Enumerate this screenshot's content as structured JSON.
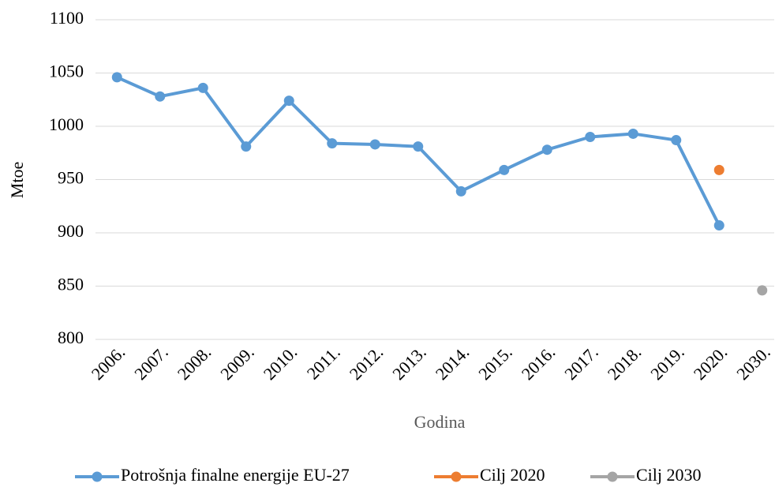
{
  "chart_data": {
    "type": "line",
    "x_label": "Godina",
    "y_label": "Mtoe",
    "categories": [
      "2006.",
      "2007.",
      "2008.",
      "2009.",
      "2010.",
      "2011.",
      "2012.",
      "2013.",
      "2014.",
      "2015.",
      "2016.",
      "2017.",
      "2018.",
      "2019.",
      "2020.",
      "2030."
    ],
    "series": [
      {
        "name": "Potrošnja finalne energije EU-27",
        "color": "#5b9bd5",
        "values": [
          1046,
          1028,
          1036,
          981,
          1024,
          984,
          983,
          981,
          939,
          959,
          978,
          990,
          993,
          987,
          907,
          null
        ]
      },
      {
        "name": "Cilj 2020",
        "color": "#ed7d31",
        "values": [
          null,
          null,
          null,
          null,
          null,
          null,
          null,
          null,
          null,
          null,
          null,
          null,
          null,
          null,
          959,
          null
        ]
      },
      {
        "name": "Cilj 2030",
        "color": "#a5a5a5",
        "values": [
          null,
          null,
          null,
          null,
          null,
          null,
          null,
          null,
          null,
          null,
          null,
          null,
          null,
          null,
          null,
          846
        ]
      }
    ],
    "ylim": [
      800,
      1100
    ],
    "yticks": [
      800,
      850,
      900,
      950,
      1000,
      1050,
      1100
    ],
    "grid": true
  }
}
